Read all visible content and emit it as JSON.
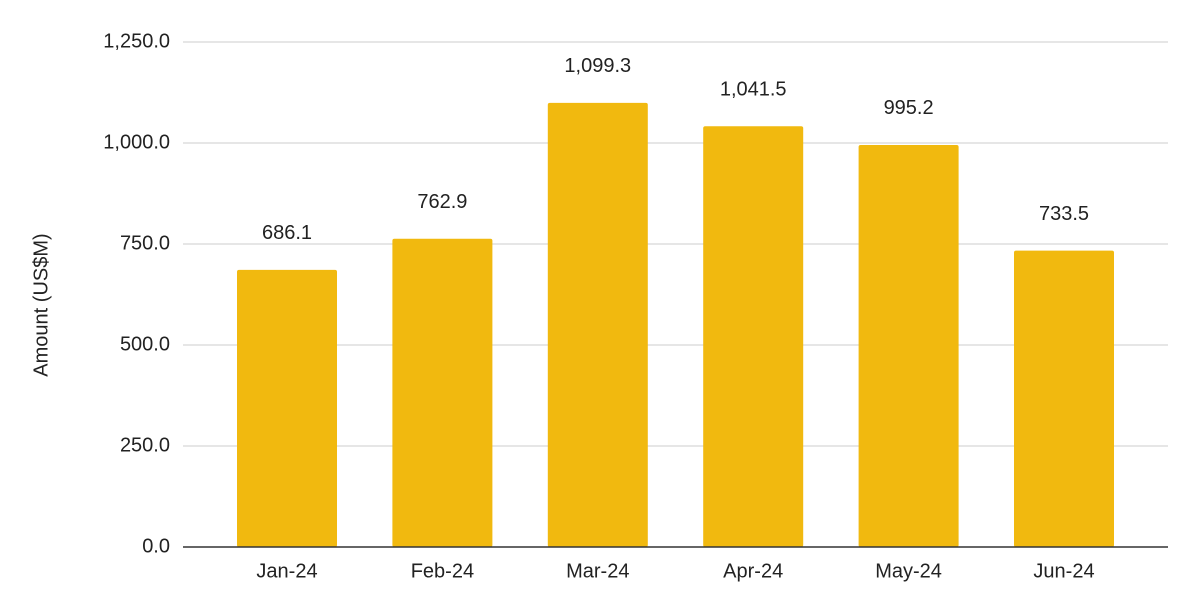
{
  "chart_data": {
    "type": "bar",
    "y_axis_label": "Amount (US$M)",
    "categories": [
      "Jan-24",
      "Feb-24",
      "Mar-24",
      "Apr-24",
      "May-24",
      "Jun-24"
    ],
    "values": [
      686.1,
      762.9,
      1099.3,
      1041.5,
      995.2,
      733.5
    ],
    "value_labels": [
      "686.1",
      "762.9",
      "1,099.3",
      "1,041.5",
      "995.2",
      "733.5"
    ],
    "color": "#f1b90f",
    "ylim": [
      0,
      1250
    ],
    "yticks": [
      {
        "value": 0,
        "label": "0.0"
      },
      {
        "value": 250,
        "label": "250.0"
      },
      {
        "value": 500,
        "label": "500.0"
      },
      {
        "value": 750,
        "label": "750.0"
      },
      {
        "value": 1000,
        "label": "1,000.0"
      },
      {
        "value": 1250,
        "label": "1,250.0"
      }
    ],
    "grid": true
  }
}
